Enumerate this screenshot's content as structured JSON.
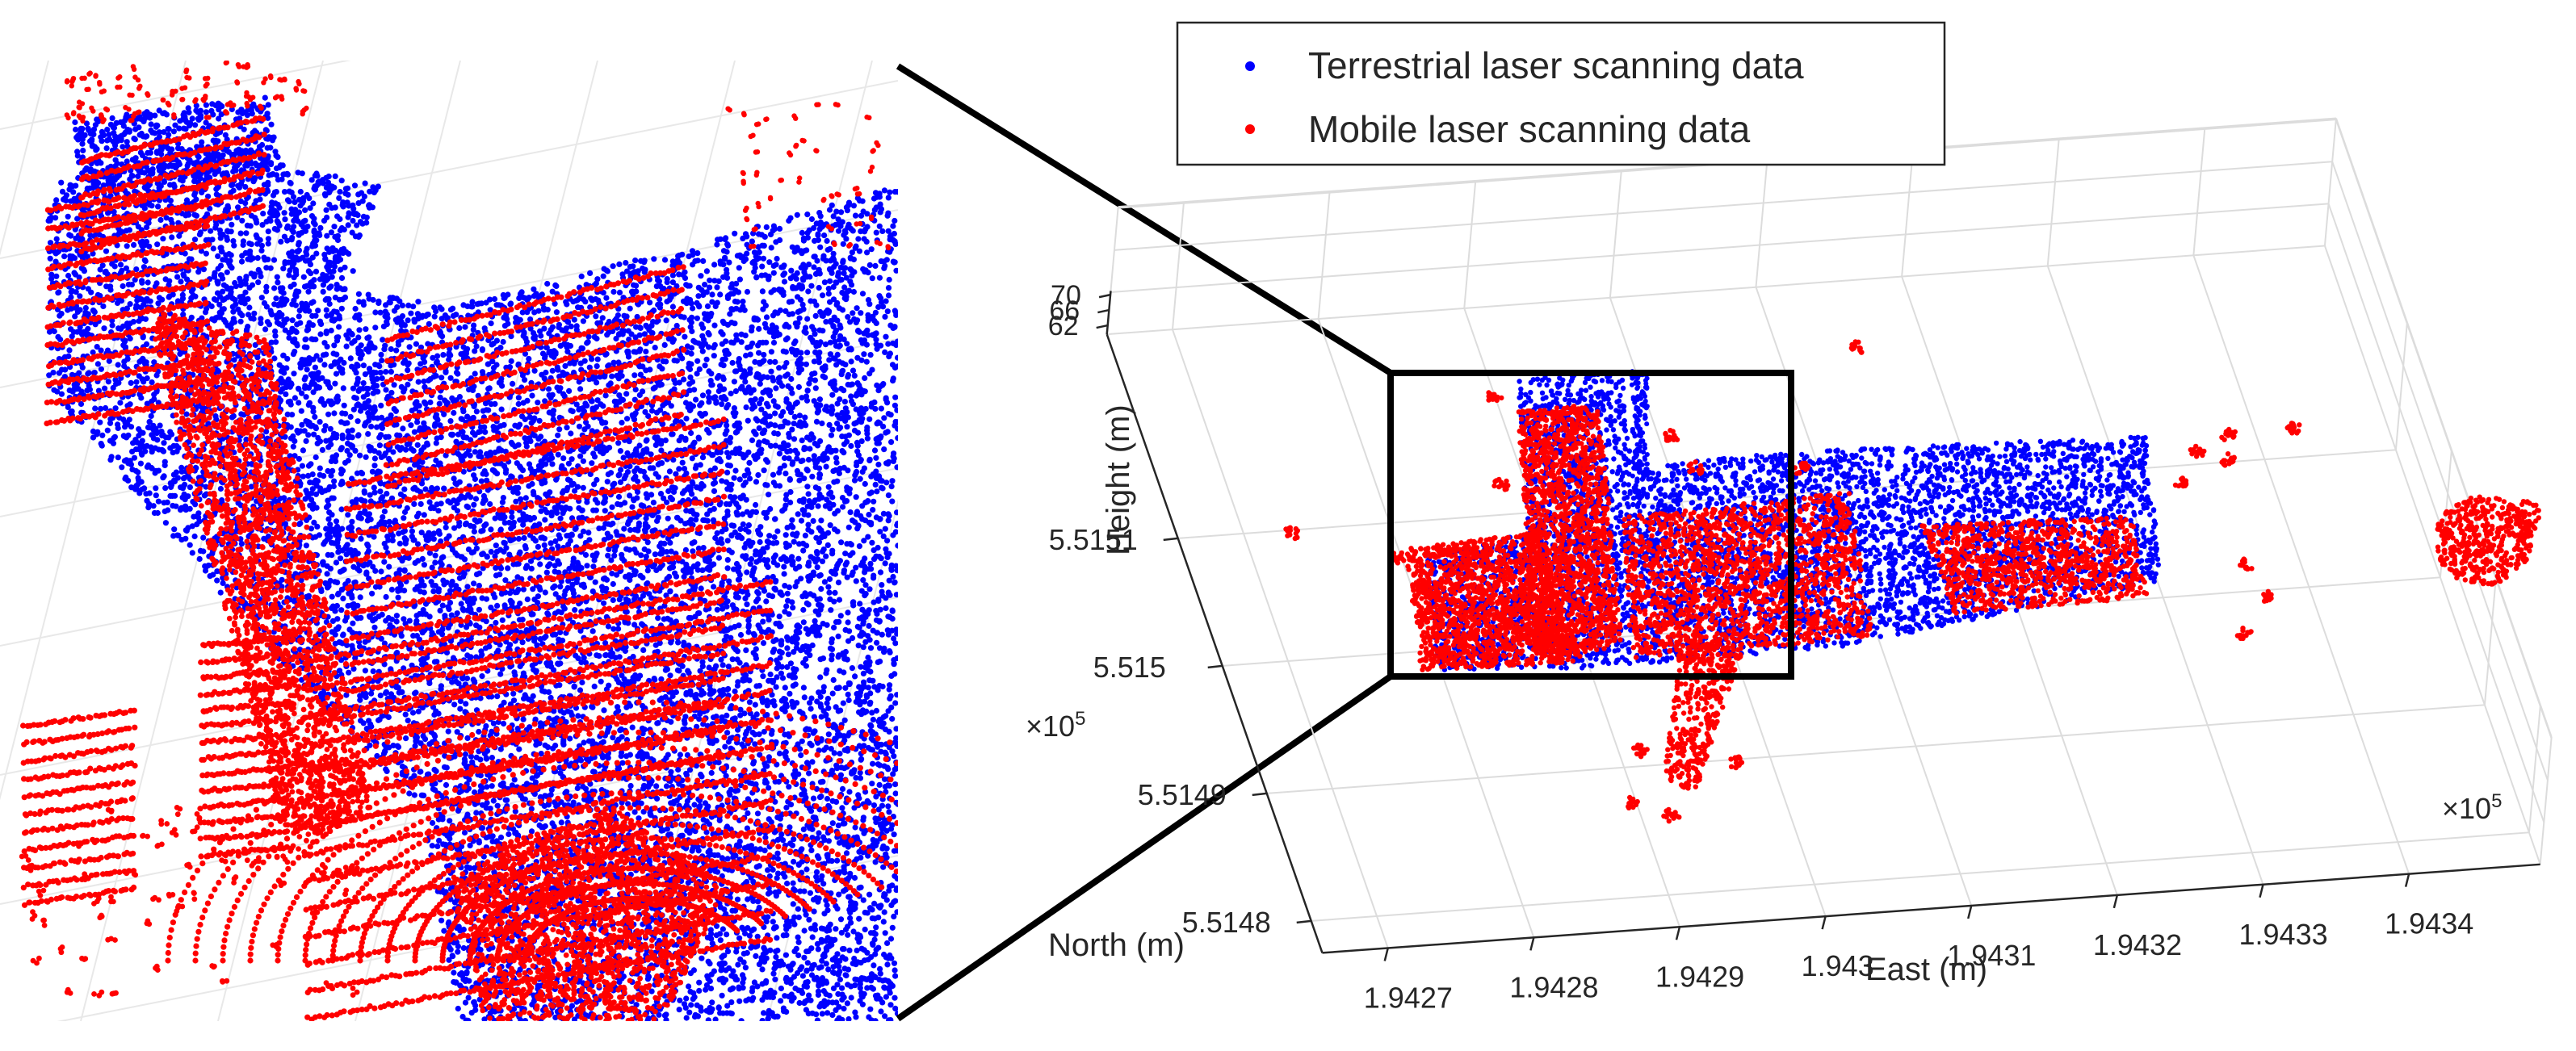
{
  "colors": {
    "tls": "#0000ff",
    "mls": "#ff0000",
    "grid": "#dcdcdc",
    "axis": "#262626",
    "frame": "#000000"
  },
  "chart_data": {
    "type": "scatter",
    "projection": "3d",
    "legend": {
      "placement": "top",
      "entries": [
        "Terrestrial laser scanning data",
        "Mobile laser scanning data"
      ]
    },
    "grid": true,
    "axes": {
      "x": {
        "label": "East (m)",
        "ticks": [
          "1.9427",
          "1.9428",
          "1.9429",
          "1.943",
          "1.9431",
          "1.9432",
          "1.9433",
          "1.9434"
        ],
        "exponent": "×10",
        "exponent_power": "5"
      },
      "y": {
        "label": "North (m)",
        "ticks": [
          "5.5148",
          "5.5149",
          "5.515",
          "5.5151"
        ],
        "exponent": "×10",
        "exponent_power": "5"
      },
      "z": {
        "label": "Height (m)",
        "ticks": [
          "62",
          "66",
          "70"
        ]
      }
    },
    "series": [
      {
        "name": "Terrestrial laser scanning data",
        "color": "#0000ff"
      },
      {
        "name": "Mobile laser scanning data",
        "color": "#ff0000"
      }
    ],
    "inset": {
      "description_visible": false,
      "zoomed_region": "black rectangle near west end of point cloud"
    }
  }
}
